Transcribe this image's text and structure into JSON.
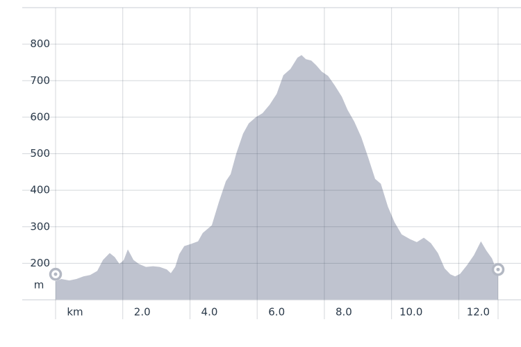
{
  "chart_data": {
    "type": "area",
    "y_unit_label": "m",
    "color": "#bfc3cf",
    "grid": true,
    "x": [
      0,
      0.17,
      0.41,
      0.62,
      0.83,
      1.03,
      1.24,
      1.41,
      1.61,
      1.76,
      1.9,
      2.03,
      2.15,
      2.32,
      2.48,
      2.69,
      2.9,
      3.1,
      3.31,
      3.43,
      3.56,
      3.68,
      3.83,
      4.03,
      4.24,
      4.38,
      4.65,
      4.86,
      5.07,
      5.21,
      5.38,
      5.58,
      5.75,
      5.96,
      6.16,
      6.37,
      6.58,
      6.78,
      6.99,
      7.2,
      7.32,
      7.45,
      7.61,
      7.76,
      7.92,
      8.11,
      8.31,
      8.52,
      8.69,
      8.89,
      9.1,
      9.31,
      9.51,
      9.68,
      9.89,
      10.09,
      10.3,
      10.55,
      10.75,
      10.96,
      11.17,
      11.38,
      11.58,
      11.75,
      11.89,
      12.04,
      12.24,
      12.45,
      12.66,
      12.82,
      12.99,
      13.11,
      13.17
    ],
    "values": [
      151,
      157,
      153,
      157,
      164,
      168,
      179,
      209,
      228,
      217,
      198,
      209,
      238,
      209,
      198,
      190,
      192,
      190,
      183,
      173,
      190,
      225,
      247,
      253,
      260,
      283,
      304,
      368,
      425,
      444,
      501,
      555,
      583,
      600,
      611,
      634,
      664,
      715,
      732,
      763,
      770,
      759,
      755,
      742,
      725,
      713,
      687,
      656,
      620,
      588,
      545,
      488,
      431,
      418,
      355,
      312,
      279,
      266,
      258,
      270,
      255,
      228,
      186,
      170,
      164,
      171,
      194,
      222,
      260,
      235,
      213,
      184,
      164
    ],
    "xlim": [
      0,
      13.17
    ],
    "xticks": [
      {
        "value": 0,
        "label": "km"
      },
      {
        "value": 2,
        "label": "2.0"
      },
      {
        "value": 4,
        "label": "4.0"
      },
      {
        "value": 6,
        "label": "6.0"
      },
      {
        "value": 8,
        "label": "8.0"
      },
      {
        "value": 10,
        "label": "10.0"
      },
      {
        "value": 12,
        "label": "12.0"
      }
    ],
    "ylim": [
      100,
      900
    ],
    "yticks": [
      200,
      300,
      400,
      500,
      600,
      700,
      800
    ]
  }
}
